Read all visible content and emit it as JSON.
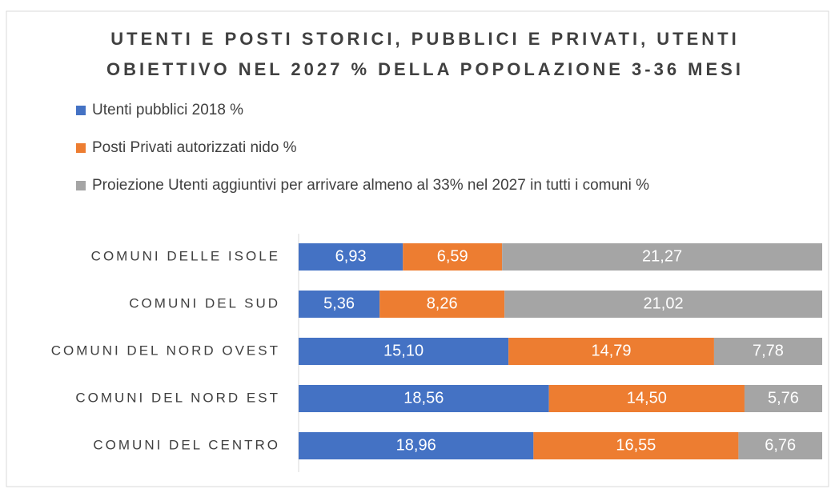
{
  "chart_data": {
    "type": "bar",
    "orientation": "horizontal",
    "stacked": "percent",
    "title": [
      "UTENTI E POSTI STORICI, PUBBLICI E PRIVATI, UTENTI",
      "OBIETTIVO NEL 2027 % DELLA POPOLAZIONE 3-36 MESI"
    ],
    "legend": "top",
    "categories": [
      "COMUNI DELLE ISOLE",
      "COMUNI DEL SUD",
      "COMUNI DEL NORD OVEST",
      "COMUNI DEL NORD EST",
      "COMUNI DEL CENTRO"
    ],
    "series": [
      {
        "name": "Utenti pubblici  2018 %",
        "color": "#4472c4",
        "values": [
          6.93,
          5.36,
          15.1,
          18.56,
          18.96
        ],
        "value_labels": [
          "6,93",
          "5,36",
          "15,10",
          "18,56",
          "18,96"
        ]
      },
      {
        "name": "Posti Privati autorizzati nido %",
        "color": "#ed7d31",
        "values": [
          6.59,
          8.26,
          14.79,
          14.5,
          16.55
        ],
        "value_labels": [
          "6,59",
          "8,26",
          "14,79",
          "14,50",
          "16,55"
        ]
      },
      {
        "name": "Proiezione Utenti aggiuntivi per arrivare almeno al 33% nel 2027 in tutti i comuni %",
        "color": "#a5a5a5",
        "values": [
          21.27,
          21.02,
          7.78,
          5.76,
          6.76
        ],
        "value_labels": [
          "21,27",
          "21,02",
          "7,78",
          "5,76",
          "6,76"
        ]
      }
    ]
  }
}
